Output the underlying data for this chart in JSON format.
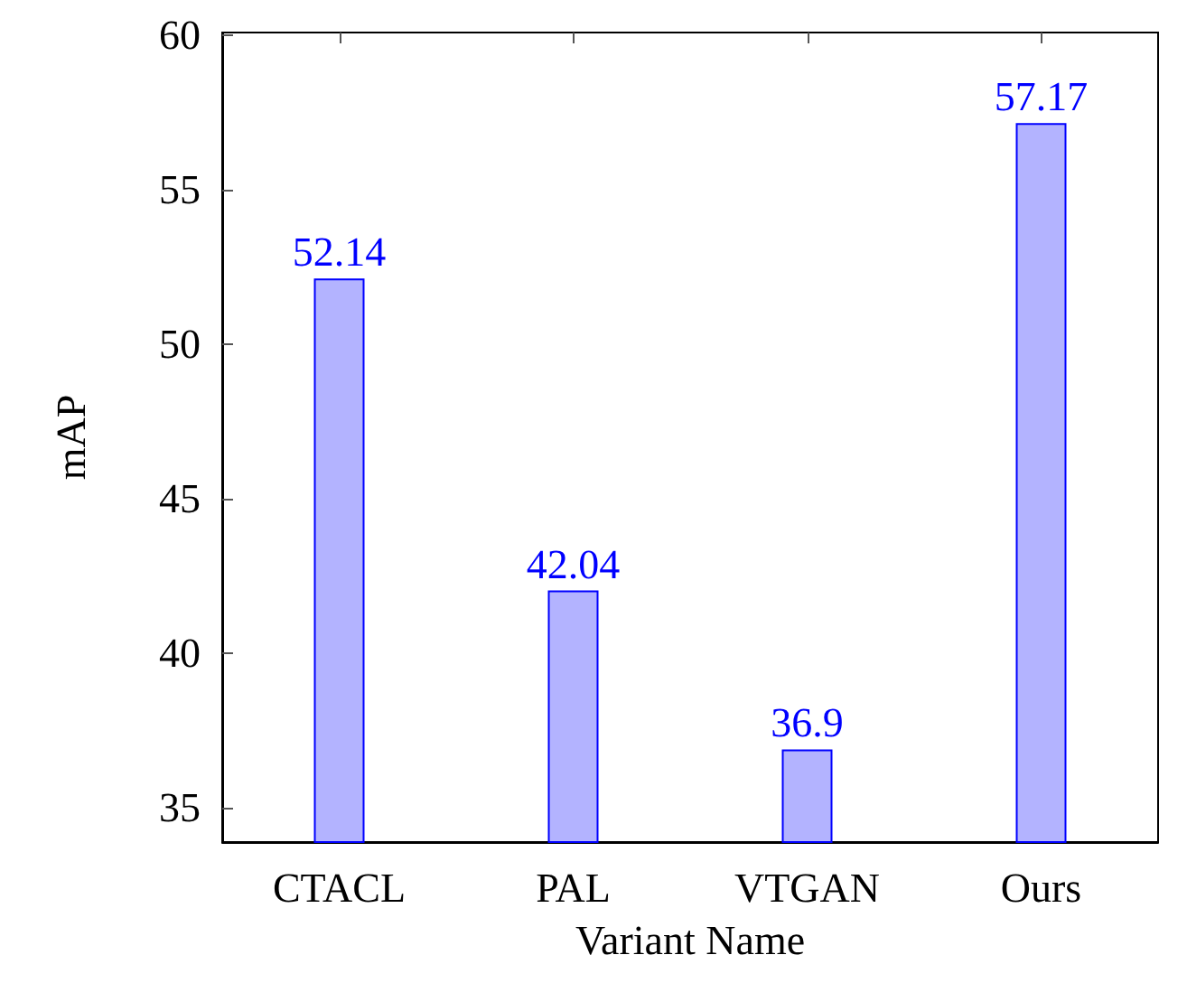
{
  "chart_data": {
    "type": "bar",
    "xlabel": "Variant Name",
    "ylabel": "mAP",
    "categories": [
      "CTACL",
      "PAL",
      "VTGAN",
      "Ours"
    ],
    "values": [
      52.14,
      42.04,
      36.9,
      57.17
    ],
    "color": "#b3b3ff",
    "ylim": [
      33.9,
      60.1
    ],
    "yticks": [
      35,
      40,
      45,
      50,
      55,
      60
    ],
    "data_labels": true,
    "grid": false
  }
}
